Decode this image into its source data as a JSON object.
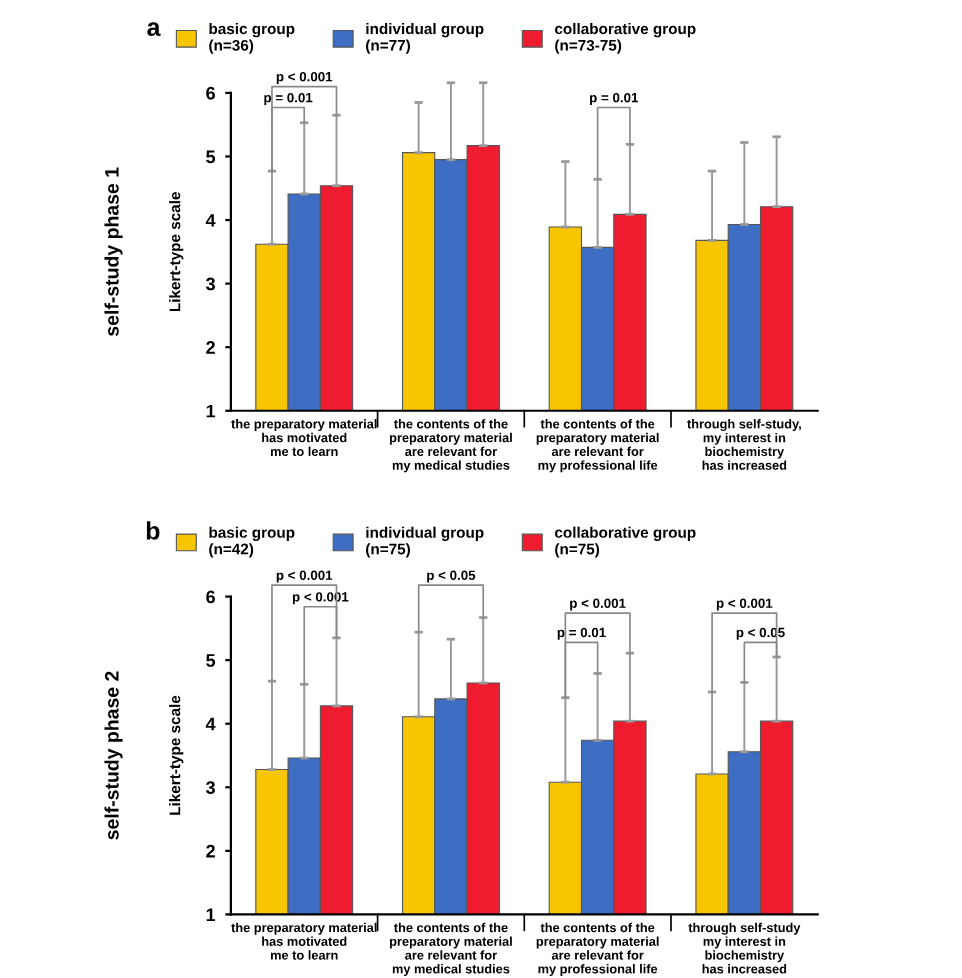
{
  "chart_data": [
    {
      "type": "bar",
      "title": "a",
      "ylabel": "Likert-type scale",
      "categories": [
        "the preparatory material\nhas motivated\nme to learn",
        "the contents of the\npreparatory material\nare relevant for\nmy medical studies",
        "the contents of the\npreparatory material\nare relevant for\nmy professional life",
        "through self-study,\nmy interest in\nbiochemistry\nhas increased"
      ],
      "series": [
        {
          "name": "basic group\n(n=36)",
          "color": "#f7c600",
          "values": [
            3.62,
            5.06,
            3.89,
            3.68
          ],
          "errors": [
            [
              3.62,
              4.77
            ],
            [
              5.06,
              5.85
            ],
            [
              3.89,
              4.92
            ],
            [
              3.68,
              4.77
            ]
          ]
        },
        {
          "name": "individual group\n(n=77)",
          "color": "#3d6ec4",
          "values": [
            4.41,
            4.95,
            3.57,
            3.93
          ],
          "errors": [
            [
              4.41,
              5.53
            ],
            [
              4.95,
              6.16
            ],
            [
              3.57,
              4.64
            ],
            [
              3.93,
              5.22
            ]
          ]
        },
        {
          "name": "collaborative group\n(n=73-75)",
          "color": "#ee1c2e",
          "values": [
            4.54,
            5.17,
            4.09,
            4.21
          ],
          "errors": [
            [
              4.54,
              5.65
            ],
            [
              5.17,
              6.16
            ],
            [
              4.09,
              5.19
            ],
            [
              4.21,
              5.31
            ]
          ]
        }
      ],
      "ylim": [
        1,
        6
      ],
      "yticks": [
        1,
        2,
        3,
        4,
        5,
        6
      ],
      "grid": false,
      "legend": "top",
      "annotations": [
        "self-study phase 1",
        "p < 0.001",
        "p = 0.01",
        "p = 0.01"
      ]
    },
    {
      "type": "bar",
      "title": "b",
      "ylabel": "Likert-type scale",
      "categories": [
        "the preparatory material\nhas motivated\nme to learn",
        "the contents of the\npreparatory material\nare relevant for\nmy medical studies",
        "the contents of the\npreparatory material\nare relevant for\nmy professional life",
        "through self-study\nmy interest in\nbiochemistry\nhas increased"
      ],
      "series": [
        {
          "name": "basic group\n(n=42)",
          "color": "#f7c600",
          "values": [
            3.28,
            4.11,
            3.08,
            3.21
          ],
          "errors": [
            [
              3.28,
              4.67
            ],
            [
              4.11,
              5.44
            ],
            [
              3.08,
              4.41
            ],
            [
              3.21,
              4.5
            ]
          ]
        },
        {
          "name": "individual group\n(n=75)",
          "color": "#3d6ec4",
          "values": [
            3.46,
            4.39,
            3.74,
            3.56
          ],
          "errors": [
            [
              3.46,
              4.62
            ],
            [
              4.39,
              5.33
            ],
            [
              3.74,
              4.79
            ],
            [
              3.56,
              4.65
            ]
          ]
        },
        {
          "name": "collaborative group\n(n=75)",
          "color": "#ee1c2e",
          "values": [
            4.28,
            4.64,
            4.04,
            4.04
          ],
          "errors": [
            [
              4.28,
              5.35
            ],
            [
              4.64,
              5.67
            ],
            [
              4.04,
              5.11
            ],
            [
              4.04,
              5.05
            ]
          ]
        }
      ],
      "ylim": [
        1,
        6
      ],
      "yticks": [
        1,
        2,
        3,
        4,
        5,
        6
      ],
      "grid": false,
      "legend": "top",
      "annotations": [
        "self-study phase 2",
        "p < 0.001",
        "p < 0.001",
        "p < 0.05",
        "p < 0.001",
        "p = 0.01",
        "p < 0.001",
        "p < 0.05"
      ]
    }
  ]
}
